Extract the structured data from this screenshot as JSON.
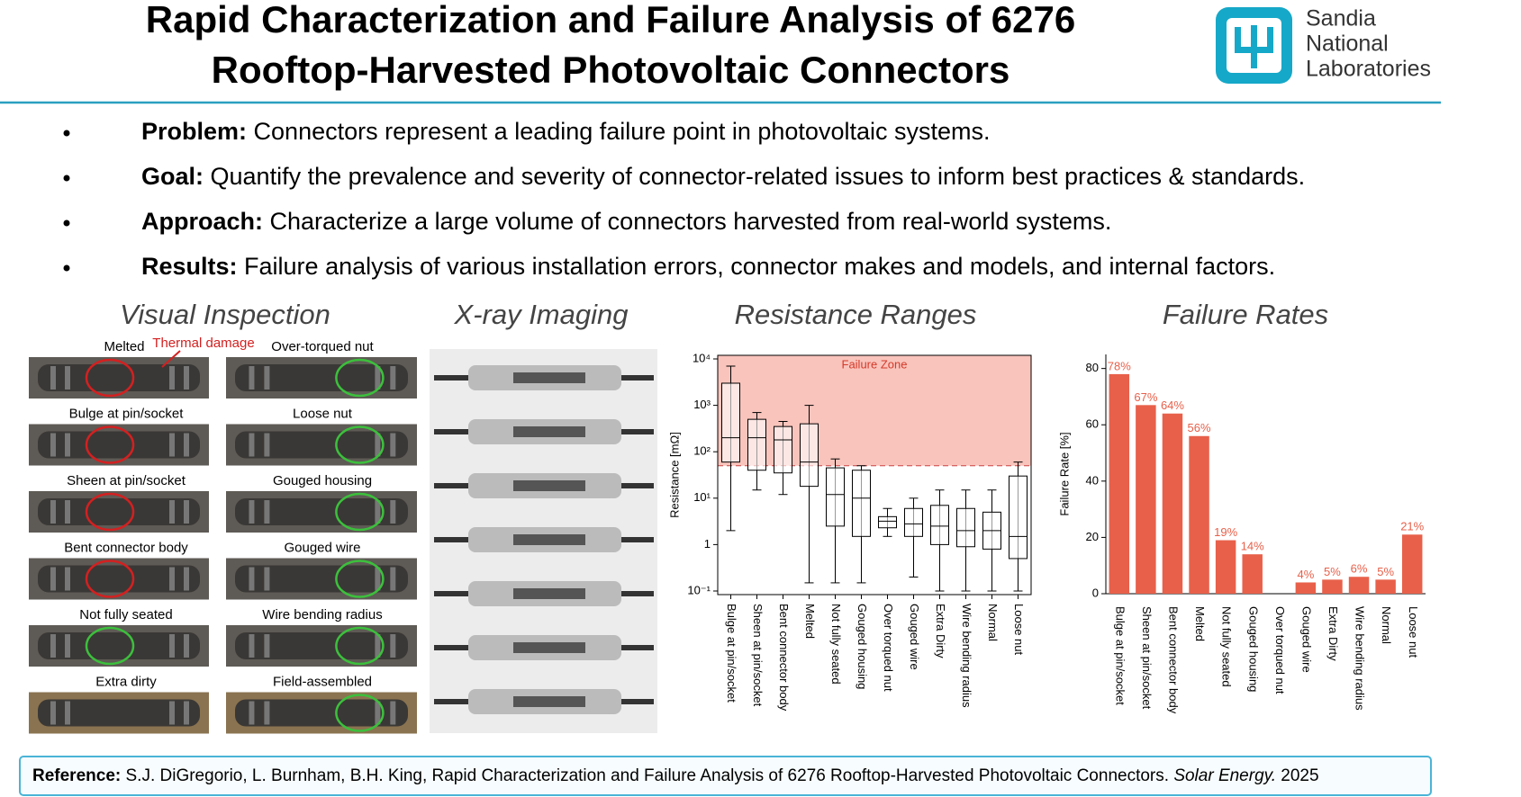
{
  "header": {
    "title_lines": [
      "Rapid Characterization and Failure Analysis of 6276",
      "Rooftop-Harvested Photovoltaic Connectors"
    ],
    "logo_lines": [
      "Sandia",
      "National",
      "Laboratories"
    ]
  },
  "bullets": [
    {
      "label": "Problem:",
      "text": " Connectors represent a leading failure point in photovoltaic systems."
    },
    {
      "label": "Goal:",
      "text": " Quantify the prevalence and severity of connector-related issues to inform best practices & standards."
    },
    {
      "label": "Approach:",
      "text": " Characterize a large volume of connectors harvested from real-world systems."
    },
    {
      "label": "Results:",
      "text": " Failure analysis of various installation errors, connector makes and models, and internal factors."
    }
  ],
  "panels": [
    "Visual Inspection",
    "X-ray Imaging",
    "Resistance Ranges",
    "Failure Rates"
  ],
  "visual_inspection": {
    "annotation": "Thermal damage",
    "photos": [
      {
        "label": "Melted",
        "ring": "#d42020"
      },
      {
        "label": "Over-torqued nut",
        "ring": "#3cc03c"
      },
      {
        "label": "Bulge at pin/socket",
        "ring": "#d42020"
      },
      {
        "label": "Loose nut",
        "ring": "#3cc03c"
      },
      {
        "label": "Sheen at pin/socket",
        "ring": "#d42020"
      },
      {
        "label": "Gouged housing",
        "ring": "#3cc03c"
      },
      {
        "label": "Bent connector body",
        "ring": "#d42020"
      },
      {
        "label": "Gouged wire",
        "ring": "#3cc03c"
      },
      {
        "label": "Not fully seated",
        "ring": "#3cc03c"
      },
      {
        "label": "Wire bending radius",
        "ring": "#3cc03c"
      },
      {
        "label": "Extra dirty"
      },
      {
        "label": "Field-assembled",
        "ring": "#3cc03c"
      }
    ]
  },
  "chart_data": [
    {
      "type": "box",
      "ylabel": "Resistance [mΩ]",
      "log_scale": true,
      "ylim": [
        0.1,
        10000
      ],
      "yticks": [
        {
          "value": 0.1,
          "label": "10⁻¹"
        },
        1,
        {
          "value": 10,
          "label": "10¹"
        },
        {
          "value": 100,
          "label": "10²"
        },
        {
          "value": 1000,
          "label": "10³"
        },
        {
          "value": 10000,
          "label": "10⁴"
        }
      ],
      "failure_zone": {
        "label": "Failure Zone",
        "threshold": 50,
        "color": "#f9c4bc"
      },
      "categories": [
        "Bulge at pin/socket",
        "Sheen at pin/socket",
        "Bent connector body",
        "Melted",
        "Not fully seated",
        "Gouged housing",
        "Over torqued nut",
        "Gouged wire",
        "Extra Dirty",
        "Wire bending radius",
        "Normal",
        "Loose nut"
      ],
      "boxes": [
        {
          "min": 2,
          "q1": 60,
          "median": 200,
          "q3": 3000,
          "max": 7000
        },
        {
          "min": 15,
          "q1": 40,
          "median": 200,
          "q3": 500,
          "max": 700
        },
        {
          "min": 12,
          "q1": 35,
          "median": 180,
          "q3": 350,
          "max": 450
        },
        {
          "min": 0.15,
          "q1": 18,
          "median": 60,
          "q3": 400,
          "max": 1000
        },
        {
          "min": 0.15,
          "q1": 2.5,
          "median": 12,
          "q3": 45,
          "max": 70
        },
        {
          "min": 0.15,
          "q1": 1.5,
          "median": 10,
          "q3": 40,
          "max": 50
        },
        {
          "min": 1.5,
          "q1": 2.3,
          "median": 3.2,
          "q3": 4,
          "max": 6
        },
        {
          "min": 0.2,
          "q1": 1.5,
          "median": 2.8,
          "q3": 6,
          "max": 10
        },
        {
          "min": 0.1,
          "q1": 1,
          "median": 2.5,
          "q3": 7,
          "max": 15
        },
        {
          "min": 0.1,
          "q1": 0.9,
          "median": 2,
          "q3": 6,
          "max": 15
        },
        {
          "min": 0.1,
          "q1": 0.8,
          "median": 2,
          "q3": 5,
          "max": 15
        },
        {
          "min": 0.1,
          "q1": 0.5,
          "median": 1.5,
          "q3": 30,
          "max": 60
        }
      ]
    },
    {
      "type": "bar",
      "ylabel": "Failure Rate [%]",
      "color": "#e8604a",
      "ylim": [
        0,
        85
      ],
      "yticks": [
        0,
        20,
        40,
        60,
        80
      ],
      "categories": [
        "Bulge at pin/socket",
        "Sheen at pin/socket",
        "Bent connector body",
        "Melted",
        "Not fully seated",
        "Gouged housing",
        "Over torqued nut",
        "Gouged wire",
        "Extra Dirty",
        "Wire bending radius",
        "Normal",
        "Loose nut"
      ],
      "values": [
        78,
        67,
        64,
        56,
        19,
        14,
        0,
        4,
        5,
        6,
        5,
        21
      ],
      "value_labels": [
        "78%",
        "67%",
        "64%",
        "56%",
        "19%",
        "14%",
        null,
        "4%",
        "5%",
        "6%",
        "5%",
        "21%"
      ]
    }
  ],
  "reference": {
    "label": "Reference:",
    "text": " S.J. DiGregorio, L. Burnham, B.H. King, Rapid Characterization and Failure Analysis of 6276 Rooftop-Harvested Photovoltaic Connectors. ",
    "journal": "Solar Energy.",
    "year": " 2025"
  }
}
